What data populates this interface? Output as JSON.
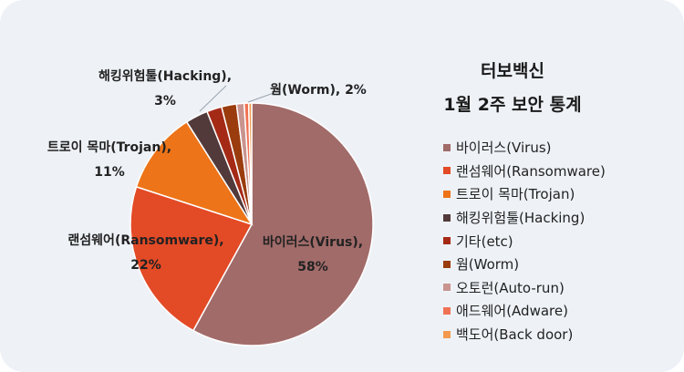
{
  "chart_data": {
    "type": "pie",
    "title_lines": [
      "터보백신",
      "1월 2주 보안 통계"
    ],
    "series": [
      {
        "name": "바이러스(Virus)",
        "value": 58,
        "color": "#a16b69",
        "label": [
          "바이러스(Virus),",
          "58%"
        ]
      },
      {
        "name": "랜섬웨어(Ransomware)",
        "value": 22,
        "color": "#e34a26",
        "label": [
          "랜섬웨어(Ransomware),",
          "22%"
        ]
      },
      {
        "name": "트로이 목마(Trojan)",
        "value": 11,
        "color": "#ed7418",
        "label": [
          "트로이 목마(Trojan),",
          "11%"
        ]
      },
      {
        "name": "해킹위험툴(Hacking)",
        "value": 3,
        "color": "#523a3b",
        "label": [
          "해킹위험툴(Hacking),",
          "3%"
        ]
      },
      {
        "name": "기타(etc)",
        "value": 2,
        "color": "#a52a16",
        "label": null
      },
      {
        "name": "웜(Worm)",
        "value": 2,
        "color": "#9a3c0e",
        "label": [
          "웜(Worm), 2%"
        ]
      },
      {
        "name": "오토런(Auto-run)",
        "value": 1,
        "color": "#c9948f",
        "label": null
      },
      {
        "name": "애드웨어(Adware)",
        "value": 0.6,
        "color": "#f07255",
        "label": null
      },
      {
        "name": "백도어(Back door)",
        "value": 0.4,
        "color": "#f39a4f",
        "label": null
      }
    ],
    "legend_position": "right"
  }
}
